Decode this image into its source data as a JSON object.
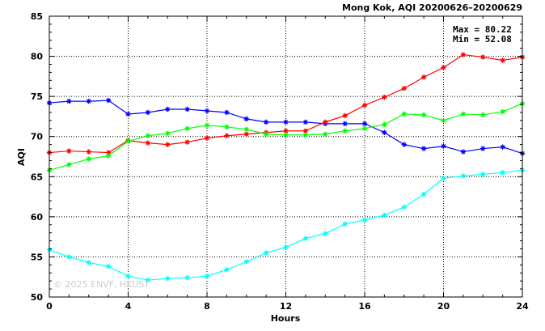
{
  "chart_data": {
    "type": "line",
    "title": "Mong Kok, AQI 20200626–20200629",
    "xlabel": "Hours",
    "ylabel": "AQI",
    "xlim": [
      0,
      24
    ],
    "ylim": [
      50,
      85
    ],
    "xticks": [
      0,
      4,
      8,
      12,
      16,
      20,
      24
    ],
    "yticks": [
      50,
      55,
      60,
      65,
      70,
      75,
      80,
      85
    ],
    "grid": true,
    "stats": {
      "max_label": "Max = 80.22",
      "min_label": "Min = 52.08"
    },
    "watermark": "© 2025  ENVF, HKUST",
    "x": [
      0,
      1,
      2,
      3,
      4,
      5,
      6,
      7,
      8,
      9,
      10,
      11,
      12,
      13,
      14,
      15,
      16,
      17,
      18,
      19,
      20,
      21,
      22,
      23,
      24
    ],
    "series": [
      {
        "color": "#0000ff",
        "values": [
          74.2,
          74.4,
          74.4,
          74.5,
          72.8,
          73.0,
          73.4,
          73.4,
          73.2,
          73.0,
          72.2,
          71.8,
          71.8,
          71.8,
          71.6,
          71.6,
          71.6,
          70.5,
          69.0,
          68.5,
          68.8,
          68.1,
          68.5,
          68.7,
          67.9
        ]
      },
      {
        "color": "#ff0000",
        "values": [
          68.0,
          68.2,
          68.1,
          68.0,
          69.5,
          69.2,
          69.0,
          69.3,
          69.8,
          70.1,
          70.3,
          70.5,
          70.7,
          70.7,
          71.8,
          72.6,
          73.9,
          74.9,
          76.0,
          77.4,
          78.6,
          80.2,
          79.9,
          79.5,
          79.9
        ]
      },
      {
        "color": "#00ff00",
        "values": [
          65.8,
          66.5,
          67.2,
          67.6,
          69.4,
          70.1,
          70.4,
          71.0,
          71.4,
          71.2,
          70.9,
          70.3,
          70.2,
          70.2,
          70.3,
          70.7,
          71.0,
          71.5,
          72.8,
          72.7,
          72.0,
          72.8,
          72.7,
          73.1,
          74.1
        ]
      },
      {
        "color": "#00ffff",
        "values": [
          55.9,
          55.0,
          54.3,
          53.8,
          52.6,
          52.1,
          52.3,
          52.4,
          52.6,
          53.4,
          54.4,
          55.5,
          56.2,
          57.3,
          57.9,
          59.1,
          59.6,
          60.2,
          61.2,
          62.8,
          64.8,
          65.1,
          65.3,
          65.5,
          65.8
        ]
      }
    ]
  }
}
